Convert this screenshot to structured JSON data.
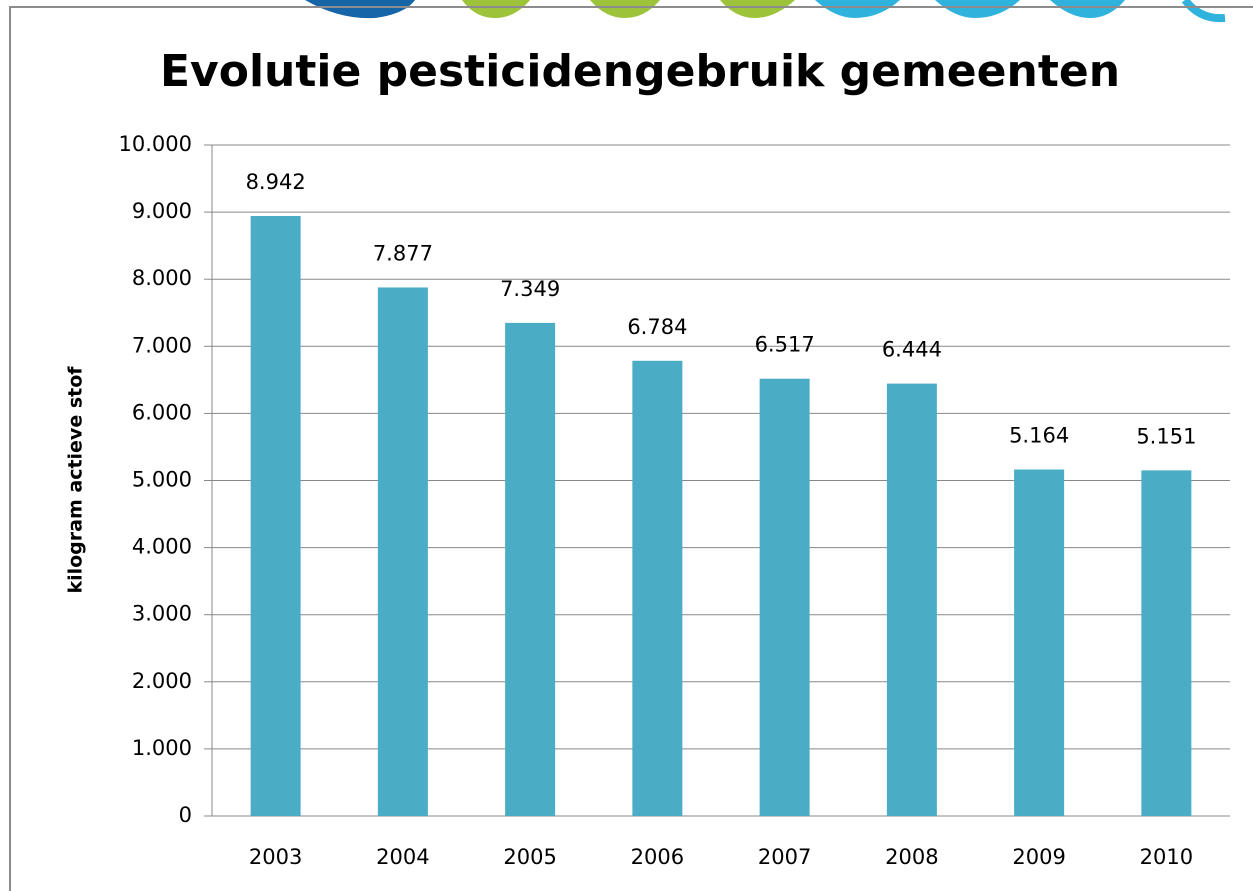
{
  "chart_data": {
    "type": "bar",
    "title": "Evolutie pesticidengebruik gemeenten",
    "y_label": "kilogram actieve stof",
    "categories": [
      "2003",
      "2004",
      "2005",
      "2006",
      "2007",
      "2008",
      "2009",
      "2010"
    ],
    "values": [
      8942,
      7877,
      7349,
      6784,
      6517,
      6444,
      5164,
      5151
    ],
    "value_labels": [
      "8.942",
      "7.877",
      "7.349",
      "6.784",
      "6.517",
      "6.444",
      "5.164",
      "5.151"
    ],
    "color": "#4bacc6",
    "ylim": [
      0,
      10000
    ],
    "yticks": [
      0,
      {
        "value": 1000,
        "label": "1.000"
      },
      {
        "value": 2000,
        "label": "2.000"
      },
      {
        "value": 3000,
        "label": "3.000"
      },
      {
        "value": 4000,
        "label": "4.000"
      },
      {
        "value": 5000,
        "label": "5.000"
      },
      {
        "value": 6000,
        "label": "6.000"
      },
      {
        "value": 7000,
        "label": "7.000"
      },
      {
        "value": 8000,
        "label": "8.000"
      },
      {
        "value": 9000,
        "label": "9.000"
      },
      {
        "value": 10000,
        "label": "10.000"
      }
    ],
    "grid": true
  }
}
